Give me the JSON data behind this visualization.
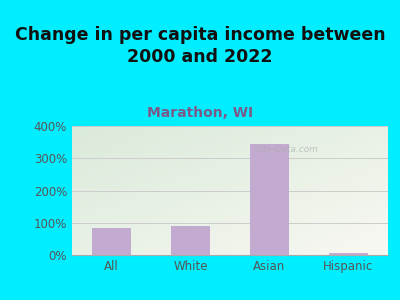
{
  "title": "Change in per capita income between\n2000 and 2022",
  "subtitle": "Marathon, WI",
  "categories": [
    "All",
    "White",
    "Asian",
    "Hispanic"
  ],
  "values": [
    85,
    90,
    345,
    5
  ],
  "bar_color": "#c3aad0",
  "title_fontsize": 12.5,
  "title_color": "#111111",
  "subtitle_fontsize": 10,
  "subtitle_color": "#7b5a8a",
  "tick_label_fontsize": 8.5,
  "tick_color": "#555555",
  "ylim": [
    0,
    400
  ],
  "yticks": [
    0,
    100,
    200,
    300,
    400
  ],
  "ytick_labels": [
    "0%",
    "100%",
    "200%",
    "300%",
    "400%"
  ],
  "background_outer": "#00eeff",
  "background_plot_tl": "#daeada",
  "background_plot_br": "#f8f8f2",
  "grid_color": "#cccccc",
  "watermark": "City-Data.com"
}
